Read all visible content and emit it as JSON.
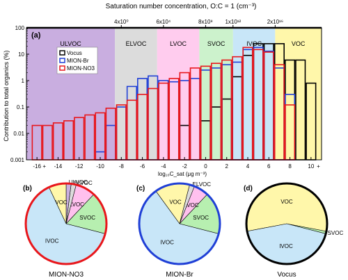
{
  "top_axis": {
    "title": "Saturation number concentration, O:C = 1 (cm⁻³)",
    "ticks": [
      {
        "at": -8,
        "label": "4x10⁰"
      },
      {
        "at": -4,
        "label": "6x10⁴"
      },
      {
        "at": 0,
        "label": "8x10⁸"
      },
      {
        "at": 2.6,
        "label": "1x10¹²"
      },
      {
        "at": 6.6,
        "label": "2x10¹⁶"
      }
    ]
  },
  "main_panel_label": "(a)",
  "ylabel": "Contribution to total organics (%)",
  "xlabel": "log₁₀C_sat (μg m⁻³)",
  "x_tick_labels": [
    "-16",
    "-14",
    "-12",
    "-10",
    "-8",
    "-6",
    "-4",
    "-2",
    "0",
    "2",
    "4",
    "6",
    "8",
    "10"
  ],
  "x_edge_marks": [
    "+",
    "+"
  ],
  "y_tick_labels": [
    "100",
    "10",
    "1",
    "0.1",
    "0.01",
    "0.001"
  ],
  "volatility_bands": [
    {
      "name": "ULVOC",
      "from": -17,
      "to": -8.6,
      "color": "#c9aee0"
    },
    {
      "name": "ELVOC",
      "from": -8.6,
      "to": -4.6,
      "color": "#dcdcdc"
    },
    {
      "name": "LVOC",
      "from": -4.6,
      "to": -0.6,
      "color": "#ffccee"
    },
    {
      "name": "SVOC",
      "from": -0.6,
      "to": 2.6,
      "color": "#ccf2cc"
    },
    {
      "name": "IVOC",
      "from": 2.6,
      "to": 6.6,
      "color": "#c8e6f8"
    },
    {
      "name": "VOC",
      "from": 6.6,
      "to": 11,
      "color": "#fff7aa"
    }
  ],
  "legend": [
    {
      "name": "Vocus",
      "color": "#000000"
    },
    {
      "name": "MION-Br",
      "color": "#1f3fd6"
    },
    {
      "name": "MION-NO3",
      "color": "#e8161b"
    }
  ],
  "chart_data": {
    "type": "bar",
    "x": [
      -16,
      -15,
      -14,
      -13,
      -12,
      -11,
      -10,
      -9,
      -8,
      -7,
      -6,
      -5,
      -4,
      -3,
      -2,
      -1,
      0,
      1,
      2,
      3,
      4,
      5,
      6,
      7,
      8,
      9,
      10
    ],
    "series": [
      {
        "name": "MION-NO3",
        "values": [
          0.02,
          0.02,
          0.025,
          0.03,
          0.04,
          0.05,
          0.06,
          0.09,
          0.12,
          0.18,
          0.3,
          0.5,
          0.8,
          1.2,
          2.0,
          3.0,
          3.5,
          4.5,
          6.0,
          8.0,
          18,
          15,
          12,
          4,
          0.12,
          null,
          null
        ]
      },
      {
        "name": "MION-Br",
        "values": [
          null,
          null,
          null,
          null,
          null,
          null,
          0.002,
          0.02,
          0.1,
          0.6,
          1.2,
          1.5,
          1.0,
          0.9,
          1.0,
          1.2,
          2.5,
          3.0,
          4.0,
          5.0,
          15,
          18,
          13,
          3,
          0.3,
          null,
          null
        ]
      },
      {
        "name": "Vocus",
        "values": [
          null,
          null,
          null,
          null,
          null,
          null,
          null,
          null,
          null,
          null,
          null,
          null,
          null,
          null,
          0.02,
          null,
          0.03,
          0.1,
          0.2,
          1.4,
          9,
          25,
          25,
          25,
          6,
          6,
          0.8
        ]
      }
    ],
    "xlabel": "log₁₀C_sat (μg m⁻³)",
    "ylabel": "Contribution to total organics (%)",
    "xlim": [
      -17,
      11
    ],
    "ylim": [
      0.001,
      100
    ],
    "yscale": "log",
    "grid": false,
    "legend_position": "top-left"
  },
  "pies": [
    {
      "panel": "(b)",
      "caption": "MION-NO3",
      "border": "#e8161b",
      "slices": [
        {
          "label": "SVOC",
          "value": 17,
          "color": "#b7efb0"
        },
        {
          "label": "LVOC",
          "value": 8,
          "color": "#ffc0ee"
        },
        {
          "label": "ELVOC",
          "value": 2,
          "color": "#dcdcdc"
        },
        {
          "label": "ULVOC",
          "value": 2,
          "color": "#c9aee0"
        },
        {
          "label": "VOC",
          "value": 7,
          "color": "#fff7aa"
        },
        {
          "label": "IVOC",
          "value": 64,
          "color": "#c8e6f8"
        }
      ]
    },
    {
      "panel": "(c)",
      "caption": "MION-Br",
      "border": "#1f3fd6",
      "slices": [
        {
          "label": "SVOC",
          "value": 17,
          "color": "#b7efb0"
        },
        {
          "label": "LVOC",
          "value": 6,
          "color": "#ffc0ee"
        },
        {
          "label": "ELVOC",
          "value": 2,
          "color": "#dcdcdc"
        },
        {
          "label": "VOC",
          "value": 14,
          "color": "#fff7aa"
        },
        {
          "label": "IVOC",
          "value": 61,
          "color": "#c8e6f8"
        }
      ]
    },
    {
      "panel": "(d)",
      "caption": "Vocus",
      "border": "#000000",
      "slices": [
        {
          "label": "SVOC",
          "value": 1,
          "color": "#b7efb0"
        },
        {
          "label": "VOC",
          "value": 56,
          "color": "#fff7aa"
        },
        {
          "label": "IVOC",
          "value": 43,
          "color": "#c8e6f8"
        }
      ]
    }
  ]
}
